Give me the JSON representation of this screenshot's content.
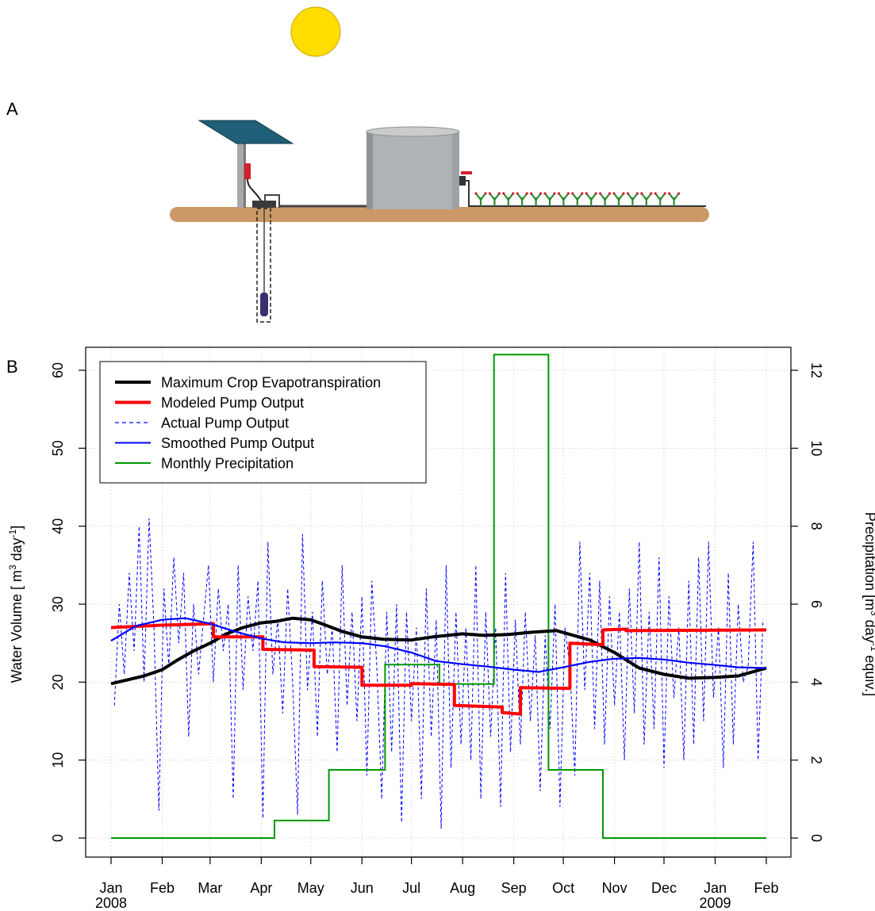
{
  "panels": {
    "a": "A",
    "b": "B"
  },
  "diagram": {
    "sun_color": "#FFDD00",
    "ground_color": "#CC9966",
    "panel_color": "#1F5F77",
    "tank_color": "#B0B3B6",
    "plant_color": "#2E8B2E",
    "plant_count": 15,
    "icons": [
      "sun-icon",
      "solar-panel-icon",
      "pump-icon",
      "water-tank-icon",
      "valve-icon",
      "crop-plant-icon"
    ]
  },
  "chart_data": {
    "type": "line",
    "xlabel": "",
    "ylabel": "Water Volume [ m",
    "ylabel_sup": "3",
    "ylabel_rest": " day",
    "ylabel_sup2": "-1",
    "ylabel_end": "]",
    "y2label": "Precipitation [m",
    "y2label_sup": "3",
    "y2label_mid": " day",
    "y2label_sup2": "-1",
    "y2label_end": " equiv.]",
    "ylim": [
      0,
      60
    ],
    "y2lim": [
      0,
      12
    ],
    "yticks": [
      "0",
      "10",
      "20",
      "30",
      "40",
      "50",
      "60"
    ],
    "y2ticks": [
      "0",
      "2",
      "4",
      "6",
      "8",
      "10",
      "12"
    ],
    "x_day_range": [
      0,
      397
    ],
    "xticks": [
      {
        "day": 0,
        "label": "Jan",
        "year": "2008"
      },
      {
        "day": 31,
        "label": "Feb",
        "year": ""
      },
      {
        "day": 60,
        "label": "Mar",
        "year": ""
      },
      {
        "day": 91,
        "label": "Apr",
        "year": ""
      },
      {
        "day": 121,
        "label": "May",
        "year": ""
      },
      {
        "day": 152,
        "label": "Jun",
        "year": ""
      },
      {
        "day": 182,
        "label": "Jul",
        "year": ""
      },
      {
        "day": 213,
        "label": "Aug",
        "year": ""
      },
      {
        "day": 244,
        "label": "Sep",
        "year": ""
      },
      {
        "day": 274,
        "label": "Oct",
        "year": ""
      },
      {
        "day": 305,
        "label": "Nov",
        "year": ""
      },
      {
        "day": 335,
        "label": "Dec",
        "year": ""
      },
      {
        "day": 366,
        "label": "Jan",
        "year": "2009"
      },
      {
        "day": 397,
        "label": "Feb",
        "year": ""
      }
    ],
    "grid": true,
    "legend_position": "top-left",
    "legend": [
      {
        "name": "Maximum Crop Evapotranspiration",
        "color": "#000000",
        "style": "thick"
      },
      {
        "name": "Modeled Pump Output",
        "color": "#FF0000",
        "style": "thick"
      },
      {
        "name": "Actual Pump Output",
        "color": "#0000FF",
        "style": "dashed"
      },
      {
        "name": "Smoothed Pump Output",
        "color": "#0000FF",
        "style": "solid"
      },
      {
        "name": "Monthly Precipitation",
        "color": "#009900",
        "style": "solid"
      }
    ],
    "series": [
      {
        "name": "Monthly Precipitation",
        "axis": "right",
        "color": "#009900",
        "step_x": [
          0,
          99,
          99,
          132,
          132,
          166,
          166,
          199,
          199,
          232,
          232,
          265,
          265,
          298,
          298,
          331,
          331,
          397
        ],
        "step_y": [
          0,
          0,
          0.45,
          0.45,
          1.75,
          1.75,
          4.45,
          4.45,
          3.95,
          3.95,
          12.4,
          12.4,
          1.75,
          1.75,
          0,
          0,
          0,
          0
        ]
      },
      {
        "name": "Modeled Pump Output",
        "axis": "left",
        "color": "#FF0000",
        "step_x": [
          0,
          31,
          31,
          62,
          62,
          92,
          92,
          123,
          123,
          152,
          152,
          182,
          182,
          208,
          208,
          237,
          237,
          248,
          248,
          278,
          278,
          298,
          298,
          312,
          312,
          397
        ],
        "step_y": [
          27.0,
          27.3,
          27.3,
          27.5,
          25.8,
          25.8,
          24.2,
          24.1,
          22.0,
          21.9,
          19.6,
          19.6,
          19.8,
          19.7,
          17.0,
          16.8,
          16.1,
          15.9,
          19.3,
          19.2,
          25.0,
          24.8,
          26.7,
          26.8,
          26.6,
          26.7
        ]
      },
      {
        "name": "Maximum Crop Evapotranspiration",
        "axis": "left",
        "color": "#000000",
        "x": [
          0,
          10,
          20,
          31,
          40,
          50,
          60,
          70,
          80,
          91,
          100,
          110,
          121,
          130,
          140,
          152,
          165,
          182,
          195,
          213,
          225,
          240,
          255,
          270,
          290,
          305,
          320,
          335,
          350,
          366,
          380,
          397
        ],
        "y": [
          19.8,
          20.3,
          20.8,
          21.6,
          22.8,
          24.0,
          25.0,
          26.2,
          27.0,
          27.6,
          27.8,
          28.2,
          28.0,
          27.3,
          26.5,
          25.8,
          25.5,
          25.4,
          25.8,
          26.2,
          26.0,
          26.1,
          26.4,
          26.6,
          25.4,
          23.8,
          21.8,
          21.0,
          20.5,
          20.6,
          20.8,
          21.8
        ]
      },
      {
        "name": "Smoothed Pump Output",
        "axis": "left",
        "color": "#0000FF",
        "x": [
          0,
          15,
          31,
          45,
          60,
          75,
          91,
          105,
          121,
          135,
          152,
          166,
          182,
          197,
          213,
          228,
          244,
          259,
          274,
          290,
          305,
          320,
          335,
          350,
          366,
          380,
          397
        ],
        "y": [
          25.3,
          27.2,
          28.0,
          28.2,
          27.5,
          26.5,
          25.6,
          25.1,
          25.0,
          25.1,
          25.0,
          24.6,
          23.8,
          22.7,
          22.3,
          22.0,
          21.6,
          21.3,
          21.9,
          22.6,
          23.0,
          23.1,
          22.9,
          22.5,
          22.2,
          21.9,
          21.8
        ]
      },
      {
        "name": "Actual Pump Output",
        "axis": "left",
        "color": "#0000FF",
        "x": [
          2,
          5,
          8,
          11,
          14,
          17,
          20,
          23,
          26,
          29,
          32,
          35,
          38,
          41,
          44,
          47,
          50,
          53,
          56,
          59,
          62,
          65,
          68,
          71,
          74,
          77,
          80,
          83,
          86,
          89,
          92,
          95,
          98,
          101,
          104,
          107,
          110,
          113,
          116,
          119,
          122,
          125,
          128,
          131,
          134,
          137,
          140,
          143,
          146,
          149,
          152,
          155,
          158,
          161,
          164,
          167,
          170,
          173,
          176,
          179,
          182,
          185,
          188,
          191,
          194,
          197,
          200,
          203,
          206,
          209,
          212,
          215,
          218,
          221,
          224,
          227,
          230,
          233,
          236,
          239,
          242,
          245,
          248,
          251,
          254,
          257,
          260,
          263,
          266,
          269,
          272,
          275,
          278,
          281,
          284,
          287,
          290,
          293,
          296,
          299,
          302,
          305,
          308,
          311,
          314,
          317,
          320,
          323,
          326,
          329,
          332,
          335,
          338,
          341,
          344,
          347,
          350,
          353,
          356,
          359,
          362,
          365,
          368,
          371,
          374,
          377,
          380,
          383,
          386,
          389,
          392,
          395
        ],
        "y": [
          17,
          30,
          21,
          34,
          24,
          40,
          20,
          41,
          27,
          3.5,
          32,
          22,
          36,
          25,
          34,
          13,
          30,
          21,
          28,
          35,
          20,
          32,
          24,
          30,
          5,
          35,
          19,
          31,
          24,
          33,
          2.5,
          38,
          21,
          28,
          16,
          32,
          20,
          3,
          39,
          19,
          29,
          13,
          33,
          21,
          27,
          11,
          35,
          17,
          29,
          15,
          31,
          8,
          33,
          22,
          5,
          29,
          11,
          30,
          2,
          29,
          15,
          27,
          5,
          32,
          13,
          28,
          1.2,
          35,
          9,
          29,
          12,
          27,
          10,
          35,
          5,
          29,
          13,
          27,
          4,
          34,
          11,
          28,
          12,
          29,
          15,
          26,
          6,
          26,
          14,
          30,
          4,
          27,
          22,
          8,
          38,
          19,
          34,
          14,
          33,
          12,
          31,
          17,
          29,
          10,
          32,
          16,
          38,
          12,
          29,
          14,
          36,
          9,
          31,
          18,
          27,
          10,
          33,
          12,
          36,
          15,
          38,
          18,
          27,
          9,
          34,
          12,
          30,
          20,
          22,
          38,
          10,
          28
        ]
      }
    ]
  }
}
